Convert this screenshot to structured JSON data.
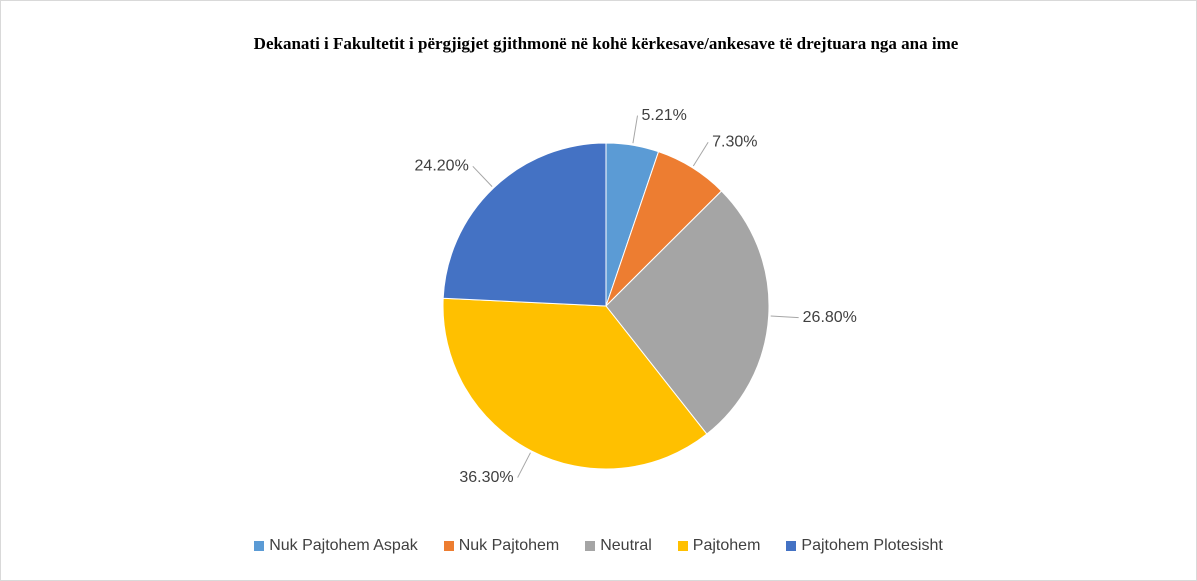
{
  "chart_data": {
    "type": "pie",
    "title": "Dekanati i Fakultetit i përgjigjet gjithmonë në kohë kërkesave/ankesave të drejtuara nga ana ime",
    "categories": [
      "Nuk Pajtohem Aspak",
      "Nuk Pajtohem",
      "Neutral",
      "Pajtohem",
      "Pajtohem Plotesisht"
    ],
    "values": [
      5.21,
      7.3,
      26.8,
      36.3,
      24.2
    ],
    "value_labels": [
      "5.21%",
      "7.30%",
      "26.80%",
      "36.30%",
      "24.20%"
    ],
    "colors": [
      "#5b9bd5",
      "#ed7d31",
      "#a5a5a5",
      "#ffc000",
      "#4472c4"
    ],
    "legend": "bottom"
  }
}
